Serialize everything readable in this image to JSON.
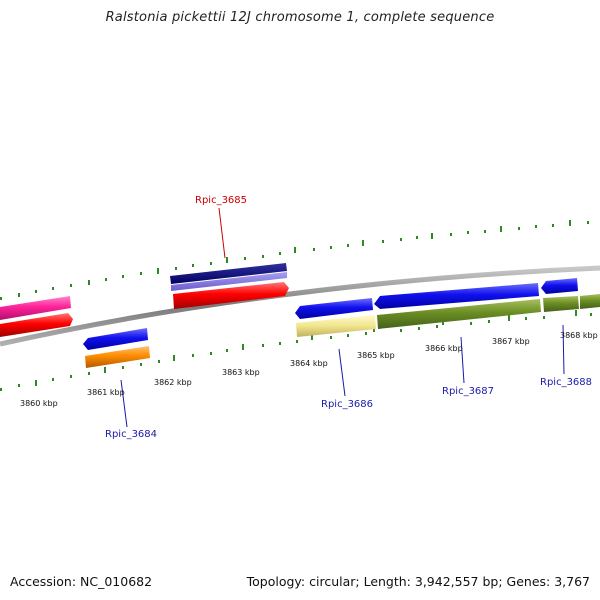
{
  "title": "Ralstonia pickettii 12J chromosome 1, complete sequence",
  "footer": {
    "accession": "Accession: NC_010682",
    "summary": "Topology: circular; Length: 3,942,557 bp; Genes: 3,767"
  },
  "scale_labels": [
    "3860 kbp",
    "3861 kbp",
    "3862 kbp",
    "3863 kbp",
    "3864 kbp",
    "3865 kbp",
    "3866 kbp",
    "3867 kbp",
    "3868 kbp"
  ],
  "gene_labels": [
    {
      "name": "Rpic_3684",
      "color": "#1a1aaa"
    },
    {
      "name": "Rpic_3685",
      "color": "#cc0000"
    },
    {
      "name": "Rpic_3686",
      "color": "#1a1aaa"
    },
    {
      "name": "Rpic_3687",
      "color": "#1a1aaa"
    },
    {
      "name": "Rpic_3688",
      "color": "#1a1aaa"
    }
  ]
}
